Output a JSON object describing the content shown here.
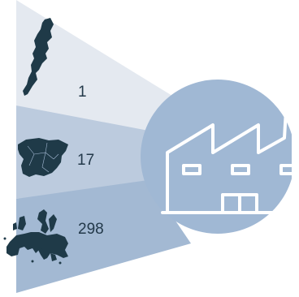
{
  "colors": {
    "band_light": "#e4e9f0",
    "band_mid": "#bccbde",
    "band_dark": "#a3b9d3",
    "circle": "#a0b8d4",
    "map_fill": "#1f3a48",
    "icon_stroke": "#ffffff",
    "text": "#23394a"
  },
  "levels": [
    {
      "map_icon": "region-map-icon",
      "value": "1"
    },
    {
      "map_icon": "country-map-icon",
      "value": "17"
    },
    {
      "map_icon": "europe-map-icon",
      "value": "298"
    }
  ],
  "center_icon": "factory-icon"
}
